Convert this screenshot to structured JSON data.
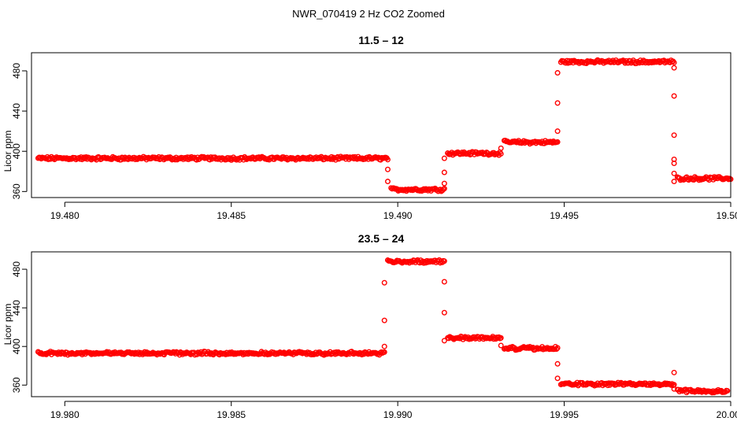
{
  "figure": {
    "title": "NWR_070419  2 Hz CO2 Zoomed",
    "point_color": "#ff0000",
    "axis_color": "#000000"
  },
  "chart_data": [
    {
      "type": "scatter",
      "title": "11.5 – 12",
      "xlabel": "",
      "ylabel": "Licor ppm",
      "xlim": [
        19.479,
        19.5
      ],
      "ylim": [
        354,
        498
      ],
      "xticks": [
        19.48,
        19.485,
        19.49,
        19.495,
        19.5
      ],
      "xtick_labels": [
        "19.480",
        "19.485",
        "19.490",
        "19.495",
        "19.500"
      ],
      "yticks": [
        360,
        400,
        440,
        480
      ],
      "ytick_labels": [
        "360",
        "400",
        "440",
        "480"
      ],
      "grid": false,
      "marker": "open-circle",
      "segments": [
        {
          "x_start": 19.4792,
          "x_end": 19.4897,
          "y": 393
        },
        {
          "x_start": 19.4898,
          "x_end": 19.4914,
          "y": 362
        },
        {
          "x_start": 19.4915,
          "x_end": 19.4931,
          "y": 398
        },
        {
          "x_start": 19.4932,
          "x_end": 19.4948,
          "y": 409
        },
        {
          "x_start": 19.4949,
          "x_end": 19.4983,
          "y": 489
        },
        {
          "x_start": 19.4984,
          "x_end": 19.5,
          "y": 373
        }
      ],
      "transitions": [
        {
          "x": 19.4897,
          "y": [
            382,
            370
          ]
        },
        {
          "x": 19.4914,
          "y": [
            368,
            379,
            393
          ]
        },
        {
          "x": 19.4931,
          "y": [
            403
          ]
        },
        {
          "x": 19.4948,
          "y": [
            420,
            448,
            478
          ]
        },
        {
          "x": 19.4983,
          "y": [
            483,
            455,
            416,
            392,
            388,
            378,
            370
          ]
        }
      ]
    },
    {
      "type": "scatter",
      "title": "23.5 – 24",
      "xlabel": "",
      "ylabel": "Licor ppm",
      "xlim": [
        19.979,
        20.0
      ],
      "ylim": [
        348,
        498
      ],
      "xticks": [
        19.98,
        19.985,
        19.99,
        19.995,
        20.0
      ],
      "xtick_labels": [
        "19.980",
        "19.985",
        "19.990",
        "19.995",
        "20.000"
      ],
      "yticks": [
        360,
        400,
        440,
        480
      ],
      "ytick_labels": [
        "360",
        "400",
        "440",
        "480"
      ],
      "grid": false,
      "marker": "open-circle",
      "segments": [
        {
          "x_start": 19.9792,
          "x_end": 19.9896,
          "y": 393
        },
        {
          "x_start": 19.9897,
          "x_end": 19.9914,
          "y": 488
        },
        {
          "x_start": 19.9915,
          "x_end": 19.9931,
          "y": 409
        },
        {
          "x_start": 19.9932,
          "x_end": 19.9948,
          "y": 398
        },
        {
          "x_start": 19.9949,
          "x_end": 19.9983,
          "y": 361
        },
        {
          "x_start": 19.9984,
          "x_end": 19.9999,
          "y": 354
        }
      ],
      "transitions": [
        {
          "x": 19.9896,
          "y": [
            400,
            427,
            466
          ]
        },
        {
          "x": 19.9914,
          "y": [
            467,
            435,
            406
          ]
        },
        {
          "x": 19.9931,
          "y": [
            401
          ]
        },
        {
          "x": 19.9948,
          "y": [
            382,
            367
          ]
        },
        {
          "x": 19.9983,
          "y": [
            373,
            356
          ]
        }
      ]
    }
  ]
}
